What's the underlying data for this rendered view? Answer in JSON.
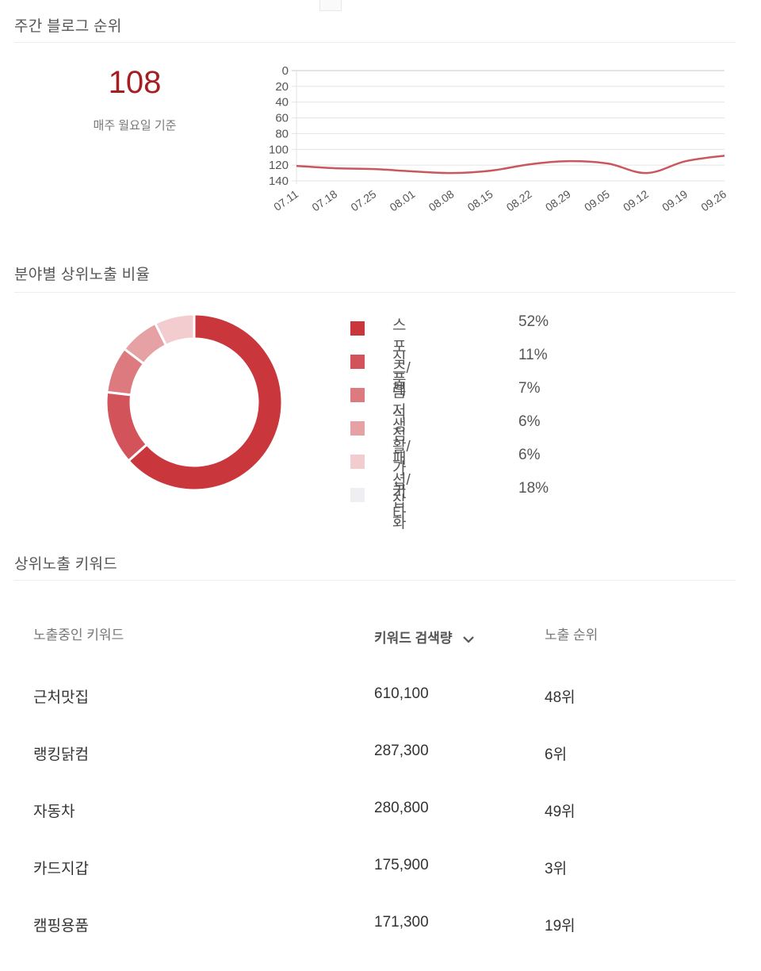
{
  "weekly_rank": {
    "title": "주간 블로그 순위",
    "current_rank": "108",
    "caption": "매주 월요일 기준"
  },
  "category_ratio": {
    "title": "분야별 상위노출 비율",
    "items": [
      {
        "label": "스포츠/레저",
        "pct": "52%",
        "value": 52,
        "color": "#c9363b"
      },
      {
        "label": "식품",
        "pct": "11%",
        "value": 11,
        "color": "#d2535a"
      },
      {
        "label": "음식점",
        "pct": "7%",
        "value": 7,
        "color": "#dc7a7f"
      },
      {
        "label": "생활/가구",
        "pct": "6%",
        "value": 6,
        "color": "#e6a1a4"
      },
      {
        "label": "패션/잡화",
        "pct": "6%",
        "value": 6,
        "color": "#f2ccce"
      },
      {
        "label": "기타",
        "pct": "18%",
        "value": 18,
        "color": "#eeeff2"
      }
    ]
  },
  "keywords": {
    "title": "상위노출 키워드",
    "headers": {
      "keyword": "노출중인 키워드",
      "volume": "키워드 검색량",
      "rank": "노출 순위"
    },
    "sort_icon": "chevron-down-icon",
    "rows": [
      {
        "keyword": "근처맛집",
        "volume": "610,100",
        "rank": "48위"
      },
      {
        "keyword": "랭킹닭컴",
        "volume": "287,300",
        "rank": "6위"
      },
      {
        "keyword": "자동차",
        "volume": "280,800",
        "rank": "49위"
      },
      {
        "keyword": "카드지갑",
        "volume": "175,900",
        "rank": "3위"
      },
      {
        "keyword": "캠핑용품",
        "volume": "171,300",
        "rank": "19위"
      }
    ]
  },
  "colors": {
    "accent": "#a51e22",
    "line": "#c9575d",
    "grid": "#e3e3e3"
  },
  "chart_data": [
    {
      "type": "line",
      "title": "주간 블로그 순위",
      "x": [
        "07.11",
        "07.18",
        "07.25",
        "08.01",
        "08.08",
        "08.15",
        "08.22",
        "08.29",
        "09.05",
        "09.12",
        "09.19",
        "09.26"
      ],
      "series": [
        {
          "name": "순위",
          "values": [
            121,
            124,
            125,
            128,
            130,
            127,
            119,
            115,
            118,
            130,
            115,
            108
          ]
        }
      ],
      "yticks": [
        0,
        20,
        40,
        60,
        80,
        100,
        120,
        140
      ],
      "ylim": [
        0,
        140
      ],
      "y_inverted": true,
      "grid": true,
      "xlabel": "",
      "ylabel": ""
    },
    {
      "type": "pie",
      "title": "분야별 상위노출 비율",
      "donut": true,
      "categories": [
        "스포츠/레저",
        "식품",
        "음식점",
        "생활/가구",
        "패션/잡화",
        "기타"
      ],
      "values": [
        52,
        11,
        7,
        6,
        6,
        18
      ],
      "legend_position": "right"
    }
  ]
}
